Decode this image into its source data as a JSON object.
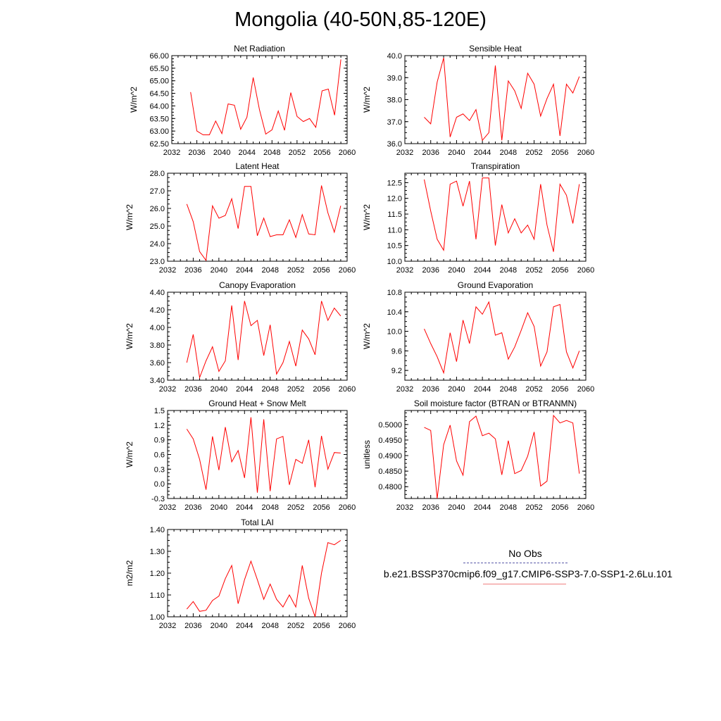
{
  "title": "Mongolia (40-50N,85-120E)",
  "colors": {
    "series": "#ff0000",
    "obs_legend": "#5a5aa8",
    "case_legend": "#f08080"
  },
  "legend": {
    "obs_label": "No Obs",
    "case_label": "b.e21.BSSP370cmip6.f09_g17.CMIP6-SSP3-7.0-SSP1-2.6Lu.101"
  },
  "chart_data": [
    {
      "type": "line",
      "title": "Net Radiation",
      "ylabel": "W/m^2",
      "xlim": [
        2032,
        2060
      ],
      "xticks": [
        "2032",
        "2036",
        "2040",
        "2044",
        "2048",
        "2052",
        "2056",
        "2060"
      ],
      "ylim": [
        62.5,
        66.0
      ],
      "yticks": [
        "62.50",
        "63.00",
        "63.50",
        "64.00",
        "64.50",
        "65.00",
        "65.50",
        "66.00"
      ],
      "x": [
        2035,
        2036,
        2037,
        2038,
        2039,
        2040,
        2041,
        2042,
        2043,
        2044,
        2045,
        2046,
        2047,
        2048,
        2049,
        2050,
        2051,
        2052,
        2053,
        2054,
        2055,
        2056,
        2057,
        2058,
        2059
      ],
      "values": [
        64.55,
        63.0,
        62.85,
        62.85,
        63.4,
        62.9,
        64.08,
        64.03,
        63.07,
        63.55,
        65.13,
        63.85,
        62.88,
        63.05,
        63.8,
        63.03,
        64.53,
        63.58,
        63.38,
        63.5,
        63.15,
        64.6,
        64.67,
        63.63,
        65.85
      ]
    },
    {
      "type": "line",
      "title": "Sensible Heat",
      "ylabel": "W/m^2",
      "xlim": [
        2032,
        2060
      ],
      "xticks": [
        "2032",
        "2036",
        "2040",
        "2044",
        "2048",
        "2052",
        "2056",
        "2060"
      ],
      "ylim": [
        36.0,
        40.0
      ],
      "yticks": [
        "36.0",
        "37.0",
        "38.0",
        "39.0",
        "40.0"
      ],
      "x": [
        2035,
        2036,
        2037,
        2038,
        2039,
        2040,
        2041,
        2042,
        2043,
        2044,
        2045,
        2046,
        2047,
        2048,
        2049,
        2050,
        2051,
        2052,
        2053,
        2054,
        2055,
        2056,
        2057,
        2058,
        2059
      ],
      "values": [
        37.2,
        36.9,
        38.8,
        39.9,
        36.3,
        37.2,
        37.35,
        37.05,
        37.55,
        36.15,
        36.5,
        39.55,
        36.15,
        38.85,
        38.4,
        37.6,
        39.2,
        38.7,
        37.25,
        38.05,
        38.7,
        36.35,
        38.7,
        38.3,
        39.05
      ]
    },
    {
      "type": "line",
      "title": "Latent Heat",
      "ylabel": "W/m^2",
      "xlim": [
        2032,
        2060
      ],
      "xticks": [
        "2032",
        "2036",
        "2040",
        "2044",
        "2048",
        "2052",
        "2056",
        "2060"
      ],
      "ylim": [
        23.0,
        28.0
      ],
      "yticks": [
        "23.0",
        "24.0",
        "25.0",
        "26.0",
        "27.0",
        "28.0"
      ],
      "x": [
        2035,
        2036,
        2037,
        2038,
        2039,
        2040,
        2041,
        2042,
        2043,
        2044,
        2045,
        2046,
        2047,
        2048,
        2049,
        2050,
        2051,
        2052,
        2053,
        2054,
        2055,
        2056,
        2057,
        2058,
        2059
      ],
      "values": [
        26.25,
        25.25,
        23.55,
        23.05,
        26.15,
        25.45,
        25.6,
        26.55,
        24.85,
        27.25,
        27.25,
        24.45,
        25.45,
        24.4,
        24.5,
        24.5,
        25.35,
        24.35,
        25.65,
        24.55,
        24.5,
        27.3,
        25.75,
        24.65,
        26.15
      ]
    },
    {
      "type": "line",
      "title": "Transpiration",
      "ylabel": "W/m^2",
      "xlim": [
        2032,
        2060
      ],
      "xticks": [
        "2032",
        "2036",
        "2040",
        "2044",
        "2048",
        "2052",
        "2056",
        "2060"
      ],
      "ylim": [
        10.0,
        12.8
      ],
      "yticks": [
        "10.0",
        "10.5",
        "11.0",
        "11.5",
        "12.0",
        "12.5"
      ],
      "x": [
        2035,
        2036,
        2037,
        2038,
        2039,
        2040,
        2041,
        2042,
        2043,
        2044,
        2045,
        2046,
        2047,
        2048,
        2049,
        2050,
        2051,
        2052,
        2053,
        2054,
        2055,
        2056,
        2057,
        2058,
        2059
      ],
      "values": [
        12.6,
        11.6,
        10.7,
        10.35,
        12.45,
        12.55,
        11.75,
        12.55,
        10.7,
        12.65,
        12.65,
        10.5,
        11.8,
        10.9,
        11.35,
        10.9,
        11.15,
        10.7,
        12.45,
        11.15,
        10.3,
        12.45,
        12.1,
        11.2,
        12.45
      ]
    },
    {
      "type": "line",
      "title": "Canopy Evaporation",
      "ylabel": "W/m^2",
      "xlim": [
        2032,
        2060
      ],
      "xticks": [
        "2032",
        "2036",
        "2040",
        "2044",
        "2048",
        "2052",
        "2056",
        "2060"
      ],
      "ylim": [
        3.4,
        4.4
      ],
      "yticks": [
        "3.40",
        "3.60",
        "3.80",
        "4.00",
        "4.20",
        "4.40"
      ],
      "x": [
        2035,
        2036,
        2037,
        2038,
        2039,
        2040,
        2041,
        2042,
        2043,
        2044,
        2045,
        2046,
        2047,
        2048,
        2049,
        2050,
        2051,
        2052,
        2053,
        2054,
        2055,
        2056,
        2057,
        2058,
        2059
      ],
      "values": [
        3.6,
        3.92,
        3.43,
        3.62,
        3.78,
        3.5,
        3.62,
        4.25,
        3.63,
        4.3,
        4.02,
        4.08,
        3.68,
        4.03,
        3.47,
        3.6,
        3.84,
        3.56,
        3.97,
        3.87,
        3.69,
        4.3,
        4.08,
        4.22,
        4.13
      ]
    },
    {
      "type": "line",
      "title": "Ground Evaporation",
      "ylabel": "W/m^2",
      "xlim": [
        2032,
        2060
      ],
      "xticks": [
        "2032",
        "2036",
        "2040",
        "2044",
        "2048",
        "2052",
        "2056",
        "2060"
      ],
      "ylim": [
        9.0,
        10.8
      ],
      "yticks": [
        "9.2",
        "9.6",
        "10.0",
        "10.4",
        "10.8"
      ],
      "x": [
        2035,
        2036,
        2037,
        2038,
        2039,
        2040,
        2041,
        2042,
        2043,
        2044,
        2045,
        2046,
        2047,
        2048,
        2049,
        2050,
        2051,
        2052,
        2053,
        2054,
        2055,
        2056,
        2057,
        2058,
        2059
      ],
      "values": [
        10.05,
        9.75,
        9.48,
        9.15,
        9.97,
        9.38,
        10.23,
        9.75,
        10.5,
        10.35,
        10.6,
        9.92,
        9.97,
        9.43,
        9.68,
        10.02,
        10.38,
        10.1,
        9.29,
        9.58,
        10.5,
        10.55,
        9.58,
        9.25,
        9.6
      ]
    },
    {
      "type": "line",
      "title": "Ground Heat + Snow Melt",
      "ylabel": "W/m^2",
      "xlim": [
        2032,
        2060
      ],
      "xticks": [
        "2032",
        "2036",
        "2040",
        "2044",
        "2048",
        "2052",
        "2056",
        "2060"
      ],
      "ylim": [
        -0.3,
        1.5
      ],
      "yticks": [
        "-0.3",
        "0.0",
        "0.3",
        "0.6",
        "0.9",
        "1.2",
        "1.5"
      ],
      "x": [
        2035,
        2036,
        2037,
        2038,
        2039,
        2040,
        2041,
        2042,
        2043,
        2044,
        2045,
        2046,
        2047,
        2048,
        2049,
        2050,
        2051,
        2052,
        2053,
        2054,
        2055,
        2056,
        2057,
        2058,
        2059
      ],
      "values": [
        1.12,
        0.92,
        0.5,
        -0.12,
        0.97,
        0.28,
        1.16,
        0.45,
        0.68,
        0.12,
        1.36,
        -0.18,
        1.32,
        -0.15,
        0.92,
        0.97,
        -0.02,
        0.5,
        0.42,
        0.9,
        -0.07,
        0.98,
        0.3,
        0.64,
        0.63
      ]
    },
    {
      "type": "line",
      "title": "Soil moisture factor (BTRAN or BTRANMN)",
      "ylabel": "unitless",
      "xlim": [
        2032,
        2060
      ],
      "xticks": [
        "2032",
        "2036",
        "2040",
        "2044",
        "2048",
        "2052",
        "2056",
        "2060"
      ],
      "ylim": [
        0.4762,
        0.5045
      ],
      "yticks": [
        "0.4800",
        "0.4850",
        "0.4900",
        "0.4950",
        "0.5000"
      ],
      "x": [
        2035,
        2036,
        2037,
        2038,
        2039,
        2040,
        2041,
        2042,
        2043,
        2044,
        2045,
        2046,
        2047,
        2048,
        2049,
        2050,
        2051,
        2052,
        2053,
        2054,
        2055,
        2056,
        2057,
        2058,
        2059
      ],
      "values": [
        0.4991,
        0.4981,
        0.4762,
        0.4935,
        0.4998,
        0.4883,
        0.4837,
        0.5009,
        0.5027,
        0.4964,
        0.4972,
        0.4954,
        0.4838,
        0.4948,
        0.4842,
        0.4852,
        0.4898,
        0.4976,
        0.4802,
        0.4818,
        0.5029,
        0.5005,
        0.5013,
        0.5005,
        0.4842
      ]
    },
    {
      "type": "line",
      "title": "Total LAI",
      "ylabel": "m2/m2",
      "xlim": [
        2032,
        2060
      ],
      "xticks": [
        "2032",
        "2036",
        "2040",
        "2044",
        "2048",
        "2052",
        "2056",
        "2060"
      ],
      "ylim": [
        1.0,
        1.4
      ],
      "yticks": [
        "1.00",
        "1.10",
        "1.20",
        "1.30",
        "1.40"
      ],
      "x": [
        2035,
        2036,
        2037,
        2038,
        2039,
        2040,
        2041,
        2042,
        2043,
        2044,
        2045,
        2046,
        2047,
        2048,
        2049,
        2050,
        2051,
        2052,
        2053,
        2054,
        2055,
        2056,
        2057,
        2058,
        2059
      ],
      "values": [
        1.035,
        1.07,
        1.025,
        1.03,
        1.075,
        1.095,
        1.175,
        1.235,
        1.06,
        1.17,
        1.255,
        1.17,
        1.08,
        1.15,
        1.08,
        1.045,
        1.1,
        1.045,
        1.235,
        1.085,
        1.0,
        1.2,
        1.34,
        1.33,
        1.35
      ]
    }
  ]
}
